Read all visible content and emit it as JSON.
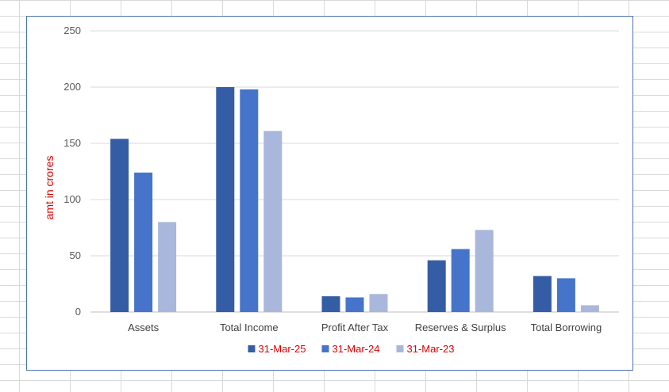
{
  "chart_data": {
    "type": "bar",
    "title": "",
    "xlabel": "",
    "ylabel": "amt in crores",
    "ylim": [
      0,
      250
    ],
    "yticks": [
      0,
      50,
      100,
      150,
      200,
      250
    ],
    "grid": true,
    "legend_position": "bottom",
    "categories": [
      "Assets",
      "Total Income",
      "Profit After Tax",
      "Reserves & Surplus",
      "Total Borrowing"
    ],
    "series": [
      {
        "name": "31-Mar-25",
        "color": "#355da5",
        "values": [
          154,
          200,
          14,
          46,
          32
        ]
      },
      {
        "name": "31-Mar-24",
        "color": "#4574ca",
        "values": [
          124,
          198,
          13,
          56,
          30
        ]
      },
      {
        "name": "31-Mar-23",
        "color": "#a9b7dc",
        "values": [
          80,
          161,
          16,
          73,
          6
        ]
      }
    ],
    "colors": {
      "ylabel": "#e00000",
      "legend_text": "#e00000",
      "axis_text": "#595959",
      "gridline": "#d9d9d9"
    }
  }
}
